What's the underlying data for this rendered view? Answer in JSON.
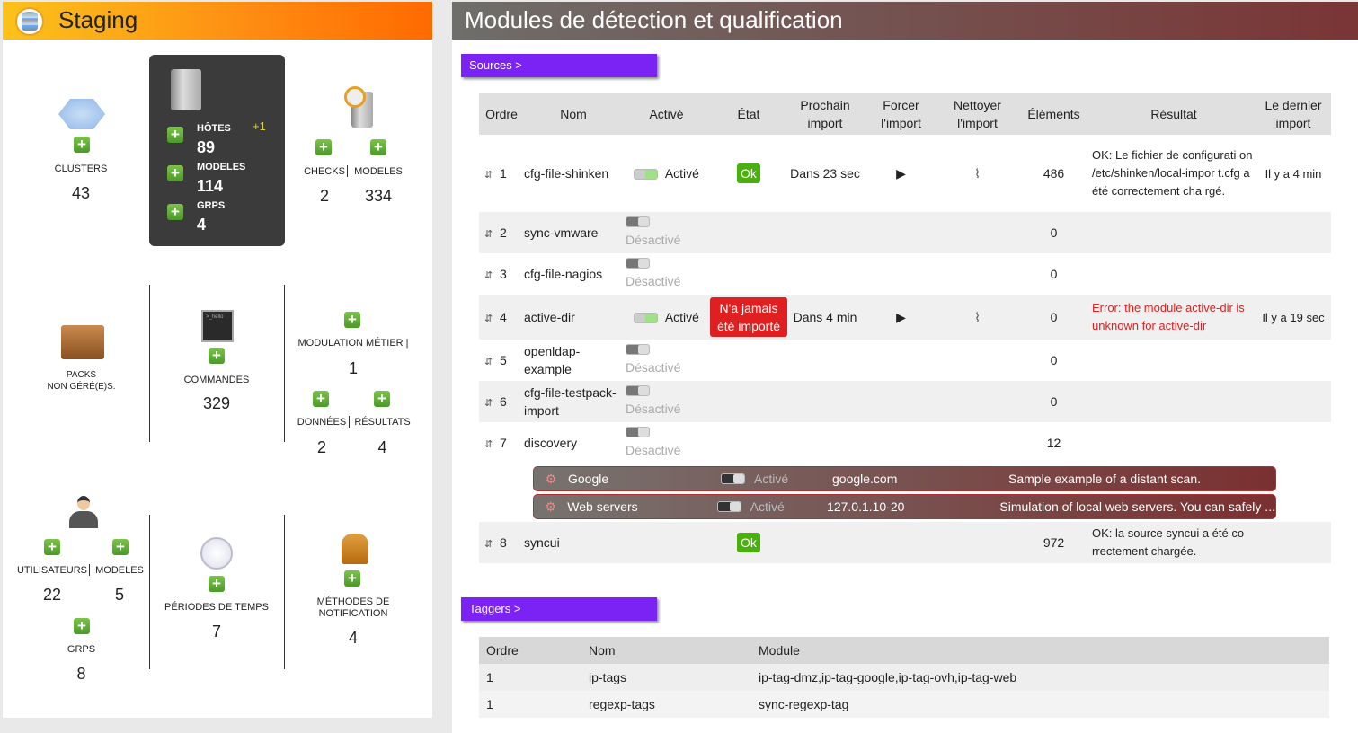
{
  "left": {
    "title": "Staging",
    "clusters": {
      "label": "CLUSTERS",
      "value": "43"
    },
    "hosts": {
      "hosts_label": "HÔTES",
      "hosts_value": "89",
      "delta": "+1",
      "models_label": "MODELES",
      "models_value": "114",
      "groups_label": "GRPS",
      "groups_value": "4"
    },
    "checks": {
      "label": "CHECKS",
      "value": "2",
      "models_label": "MODELES",
      "models_value": "334"
    },
    "packs": {
      "label1": "PACKS",
      "label2": "NON GÉRÉ(E)S."
    },
    "commands": {
      "label": "COMMANDES",
      "value": "329",
      "icon_text": ">_hello"
    },
    "modulation": {
      "label": "MODULATION MÉTIER",
      "value": "1",
      "data_label": "DONNÉES",
      "data_value": "2",
      "results_label": "RÉSULTATS",
      "results_value": "4"
    },
    "users": {
      "label": "UTILISATEURS",
      "value": "22",
      "models_label": "MODELES",
      "models_value": "5",
      "groups_label": "GRPS",
      "groups_value": "8"
    },
    "timeperiods": {
      "label": "PÉRIODES DE TEMPS",
      "value": "7"
    },
    "notifications": {
      "label1": "MÉTHODES DE",
      "label2": "NOTIFICATION",
      "value": "4"
    }
  },
  "right": {
    "title": "Modules de détection et qualification",
    "sources_button": "Sources >",
    "taggers_button": "Taggers >",
    "columns": [
      "Ordre",
      "Nom",
      "Activé",
      "État",
      "Prochain import",
      "Forcer l'import",
      "Nettoyer l'import",
      "Éléments",
      "Résultat",
      "Le dernier import"
    ],
    "sources": [
      {
        "order": "1",
        "name": "cfg-file-shinken",
        "enabled": true,
        "enabled_label": "Activé",
        "state": "Ok",
        "next": "Dans 23 sec",
        "elements": "486",
        "result": "OK: Le fichier de configurati on /etc/shinken/local-impor t.cfg a été correctement cha rgé.",
        "last": "Il y a 4 min"
      },
      {
        "order": "2",
        "name": "sync-vmware",
        "enabled": false,
        "enabled_label": "Désactivé",
        "elements": "0"
      },
      {
        "order": "3",
        "name": "cfg-file-nagios",
        "enabled": false,
        "enabled_label": "Désactivé",
        "elements": "0"
      },
      {
        "order": "4",
        "name": "active-dir",
        "enabled": true,
        "enabled_label": "Activé",
        "state": "N'a jamais été importé",
        "next": "Dans 4 min",
        "elements": "0",
        "result": "Error: the module active-dir is unknown for active-dir",
        "last": "Il y a 19 sec"
      },
      {
        "order": "5",
        "name": "openldap-example",
        "enabled": false,
        "enabled_label": "Désactivé",
        "elements": "0"
      },
      {
        "order": "6",
        "name": "cfg-file-testpack-import",
        "enabled": false,
        "enabled_label": "Désactivé",
        "elements": "0"
      },
      {
        "order": "7",
        "name": "discovery",
        "enabled": false,
        "enabled_label": "Désactivé",
        "elements": "12"
      },
      {
        "order": "8",
        "name": "syncui",
        "state": "Ok",
        "elements": "972",
        "result": "OK: la source syncui a été co rrectement chargée."
      }
    ],
    "discovery_rules": [
      {
        "name": "Google",
        "enabled_label": "Activé",
        "target": "google.com",
        "description": "Sample example of a distant scan."
      },
      {
        "name": "Web servers",
        "enabled_label": "Activé",
        "target": "127.0.1.10-20",
        "description": "Simulation of local web servers. You can safely ..."
      }
    ],
    "tagger_columns": [
      "Ordre",
      "Nom",
      "Module"
    ],
    "taggers": [
      {
        "order": "1",
        "name": "ip-tags",
        "module": "ip-tag-dmz,ip-tag-google,ip-tag-ovh,ip-tag-web"
      },
      {
        "order": "1",
        "name": "regexp-tags",
        "module": "sync-regexp-tag"
      }
    ]
  },
  "colors": {
    "accent_purple": "#7b22f5",
    "ok_green": "#4caf10",
    "error_red": "#e02020"
  }
}
